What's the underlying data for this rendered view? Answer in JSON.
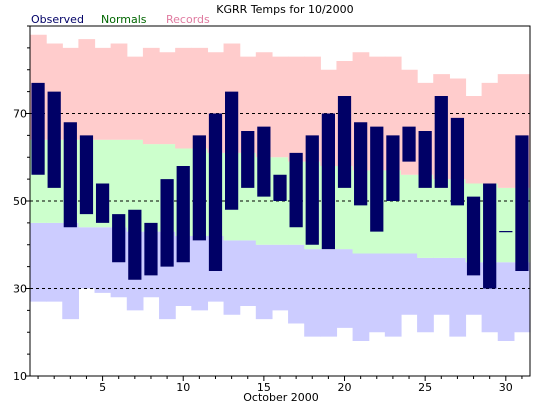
{
  "chart_data": {
    "type": "bar",
    "title": "KGRR Temps for 10/2000",
    "xlabel": "October 2000",
    "ylabel": "",
    "xlim": [
      0.5,
      31.5
    ],
    "ylim": [
      10,
      90
    ],
    "x_ticks": [
      5,
      10,
      15,
      20,
      25,
      30
    ],
    "y_ticks": [
      10,
      30,
      50,
      70
    ],
    "y_gridlines": [
      30,
      50,
      70
    ],
    "legend": {
      "placement": "top-left",
      "entries": [
        {
          "label": "Observed",
          "color": "#000066"
        },
        {
          "label": "Normals",
          "color": "#006600"
        },
        {
          "label": "Records",
          "color": "#e07ba0"
        }
      ]
    },
    "colors": {
      "observed": "#000066",
      "normals": "#ccffcc",
      "record_high": "#ffcccc",
      "record_low": "#ccccff"
    },
    "days": [
      1,
      2,
      3,
      4,
      5,
      6,
      7,
      8,
      9,
      10,
      11,
      12,
      13,
      14,
      15,
      16,
      17,
      18,
      19,
      20,
      21,
      22,
      23,
      24,
      25,
      26,
      27,
      28,
      29,
      30,
      31
    ],
    "record_high": [
      88,
      86,
      85,
      87,
      85,
      86,
      83,
      85,
      84,
      85,
      85,
      84,
      86,
      83,
      84,
      83,
      83,
      83,
      80,
      82,
      84,
      83,
      83,
      80,
      77,
      79,
      78,
      74,
      77,
      79,
      79
    ],
    "normal_high": [
      64,
      64,
      64,
      64,
      64,
      64,
      64,
      63,
      63,
      62,
      62,
      61,
      61,
      61,
      60,
      60,
      59,
      59,
      58,
      58,
      57,
      57,
      57,
      56,
      56,
      55,
      55,
      54,
      54,
      53,
      53
    ],
    "normal_low": [
      45,
      45,
      45,
      44,
      44,
      44,
      43,
      43,
      43,
      42,
      42,
      42,
      41,
      41,
      40,
      40,
      40,
      39,
      39,
      39,
      38,
      38,
      38,
      38,
      37,
      37,
      37,
      36,
      36,
      36,
      36
    ],
    "record_low": [
      27,
      27,
      23,
      30,
      29,
      28,
      25,
      28,
      23,
      26,
      25,
      27,
      24,
      26,
      23,
      25,
      22,
      19,
      19,
      21,
      18,
      20,
      19,
      24,
      20,
      24,
      19,
      24,
      20,
      18,
      20
    ],
    "observed_high": [
      77,
      75,
      68,
      65,
      54,
      47,
      48,
      45,
      55,
      58,
      65,
      70,
      75,
      66,
      67,
      56,
      61,
      65,
      70,
      74,
      68,
      67,
      65,
      67,
      66,
      74,
      69,
      51,
      54,
      43,
      65
    ],
    "observed_low": [
      56,
      53,
      44,
      47,
      45,
      36,
      32,
      33,
      35,
      36,
      41,
      34,
      48,
      53,
      51,
      50,
      44,
      40,
      39,
      53,
      49,
      43,
      50,
      59,
      53,
      53,
      49,
      33,
      30,
      43,
      34
    ]
  }
}
